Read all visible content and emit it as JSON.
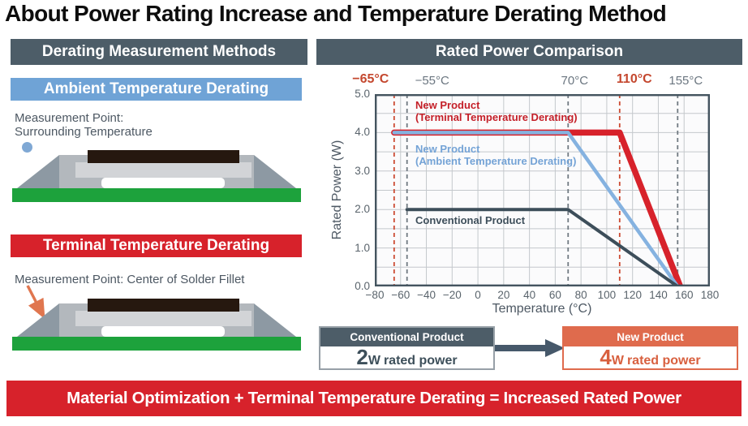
{
  "title": "About Power Rating Increase and Temperature Derating Method",
  "left_panel": {
    "header": "Derating Measurement Methods",
    "ambient": {
      "title": "Ambient Temperature Derating",
      "note_line1": "Measurement Point:",
      "note_line2": "Surrounding Temperature"
    },
    "terminal": {
      "title": "Terminal Temperature Derating",
      "note": "Measurement Point: Center of Solder Fillet"
    }
  },
  "right_panel": {
    "header": "Rated Power Comparison"
  },
  "chart_data": {
    "type": "line",
    "title": "Rated Power Comparison",
    "xlabel": "Temperature (°C)",
    "ylabel": "Rated Power (W)",
    "xlim": [
      -80,
      180
    ],
    "ylim": [
      0,
      5
    ],
    "x_ticks": [
      -80,
      -60,
      -40,
      -20,
      0,
      20,
      40,
      60,
      80,
      100,
      120,
      140,
      160,
      180
    ],
    "y_ticks": [
      0,
      1,
      2,
      3,
      4,
      5
    ],
    "grid": true,
    "grid_x_step": 20,
    "grid_y_step": 0.5,
    "plot_bg": "#fbfbfc",
    "grid_color": "#c4c8cc",
    "border_color": "#44545f",
    "reference_lines": [
      {
        "value": -65,
        "label": "−65°C",
        "emphasis": true,
        "label_dx": -29
      },
      {
        "value": -55,
        "label": "−55°C",
        "emphasis": false,
        "label_dx": 31
      },
      {
        "value": 70,
        "label": "70°C",
        "emphasis": false,
        "label_dx": 8
      },
      {
        "value": 110,
        "label": "110°C",
        "emphasis": true,
        "label_dx": 18
      },
      {
        "value": 155,
        "label": "155°C",
        "emphasis": false,
        "label_dx": 10
      }
    ],
    "ref_red": "#cc4b33",
    "ref_gray": "#717a82",
    "series": [
      {
        "id": "terminal",
        "name_lines": [
          "New Product",
          "(Terminal Temperature Derating)"
        ],
        "color": "#d7222b",
        "stroke_width": 7.5,
        "points": [
          [
            -65,
            4.0
          ],
          [
            110,
            4.0
          ],
          [
            157,
            0
          ]
        ]
      },
      {
        "id": "ambient",
        "name_lines": [
          "New Product",
          "(Ambient Temperature Derating)"
        ],
        "color": "#85b2e0",
        "stroke_width": 4.5,
        "points": [
          [
            -65,
            4.0
          ],
          [
            70,
            4.0
          ],
          [
            155,
            0
          ]
        ]
      },
      {
        "id": "conventional",
        "name_lines": [
          "Conventional Product"
        ],
        "color": "#3d4e5a",
        "stroke_width": 4,
        "points": [
          [
            -55,
            2.0
          ],
          [
            70,
            2.0
          ],
          [
            155,
            0
          ]
        ]
      }
    ]
  },
  "comparison": {
    "conventional": {
      "header": "Conventional Product",
      "value": "2",
      "unit": "W",
      "suffix": "rated power"
    },
    "new_product": {
      "header": "New Product",
      "value": "4",
      "unit": "W",
      "suffix": "rated power"
    }
  },
  "banner": "Material Optimization + Terminal Temperature Derating = Increased Rated Power",
  "colors": {
    "header_dark": "#4d5d68",
    "ambient_blue": "#6fa3d6",
    "red": "#d7222b",
    "salmon": "#df6b4d",
    "pcb_green": "#1da23c"
  }
}
